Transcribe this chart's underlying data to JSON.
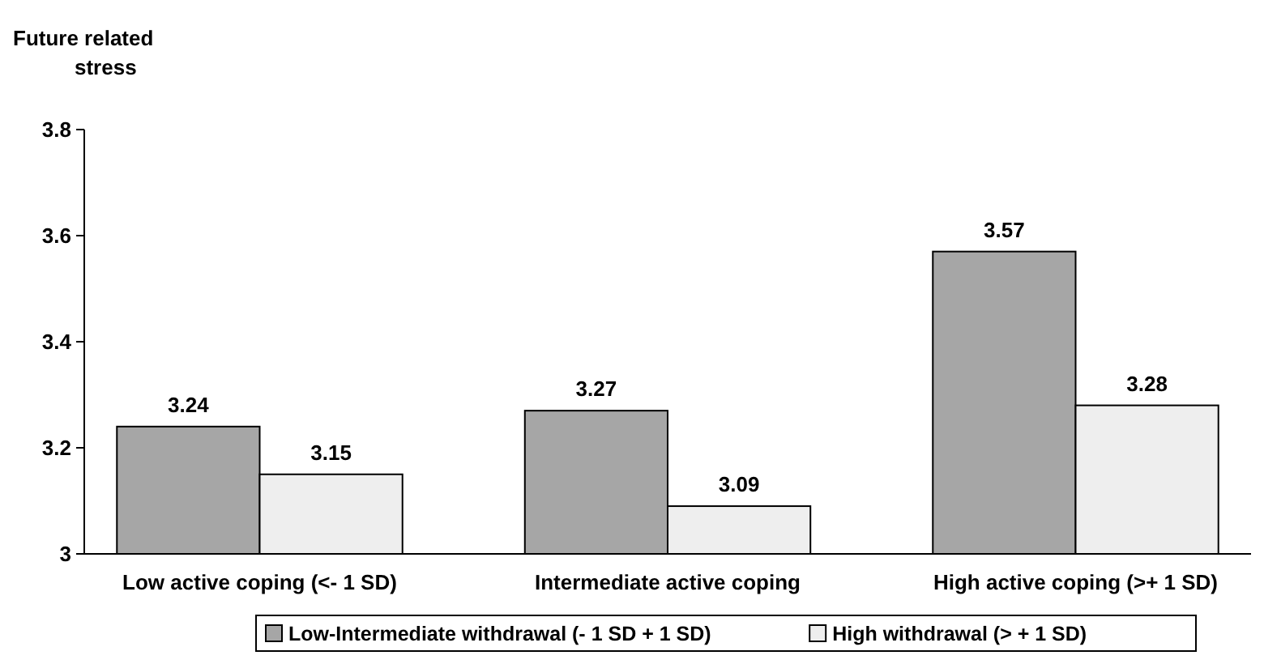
{
  "chart_data": {
    "type": "bar",
    "ylabel": "Future related stress",
    "categories": [
      "Low active coping (<- 1 SD)",
      "Intermediate active coping",
      "High active coping (>+ 1 SD)"
    ],
    "series": [
      {
        "name": "Low-Intermediate withdrawal (- 1 SD + 1 SD)",
        "color": "#a6a6a6",
        "values": [
          3.24,
          3.27,
          3.57
        ]
      },
      {
        "name": "High withdrawal (> + 1 SD)",
        "color": "#eeeeee",
        "values": [
          3.15,
          3.09,
          3.28
        ]
      }
    ],
    "ylim": [
      3,
      3.8
    ],
    "yticks": [
      3,
      3.2,
      3.4,
      3.6,
      3.8
    ],
    "data_labels": true,
    "grid": false,
    "legend": "bottom"
  }
}
